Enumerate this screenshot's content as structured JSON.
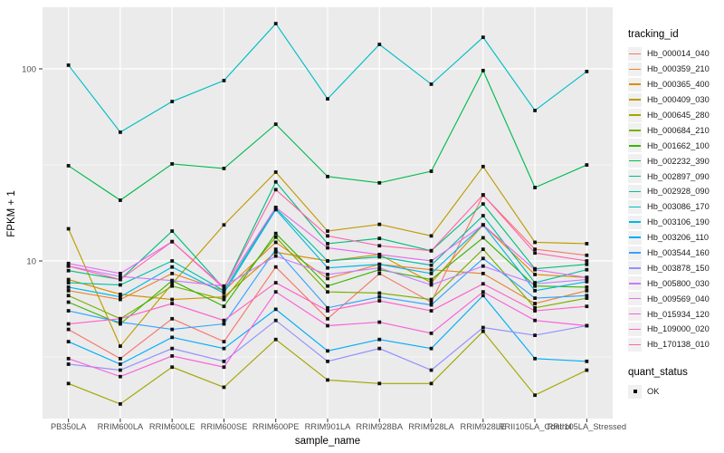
{
  "figure": {
    "legend": {
      "tracking_title": "tracking_id",
      "quant_title": "quant_status",
      "quant_items": [
        {
          "label": "OK",
          "shape": "filled-square",
          "color": "#000000"
        }
      ]
    },
    "panel_background": "#EBEBEB",
    "gridline_color": "#FFFFFF",
    "tick_label_color": "#4D4D4D",
    "point_color": "#111111"
  },
  "chart_data": {
    "type": "line",
    "title": "",
    "xlabel": "sample_name",
    "ylabel": "FPKM + 1",
    "y_scale": "log10",
    "ylim": [
      1.5,
      209
    ],
    "grid": "on",
    "legend_position": "right",
    "point_shape": "filled-square-black",
    "y_ticks": [
      {
        "label": "100",
        "value": 100
      },
      {
        "label": "10",
        "value": 10
      }
    ],
    "y_minor_gridlines": [
      3.1623,
      31.623
    ],
    "categories": [
      "PB350LA",
      "RRIM600LA",
      "RRIM600LE",
      "RRIM600SE",
      "RRIM600PE",
      "RRIM901LA",
      "RRIM928BA",
      "RRIM928LA",
      "RRIM928LE",
      "RRII105LA_Control",
      "RRII105LA_Stressed"
    ],
    "series": [
      {
        "name": "Hb_000014_040",
        "color": "#F8766D",
        "values": [
          4.4,
          3.1,
          5.0,
          3.8,
          9.3,
          5.0,
          8.6,
          6.1,
          22.0,
          11.5,
          10.7
        ]
      },
      {
        "name": "Hb_000359_210",
        "color": "#EA8331",
        "values": [
          7.0,
          6.3,
          8.6,
          7.0,
          12.5,
          8.1,
          9.6,
          9.0,
          8.6,
          6.0,
          7.0
        ]
      },
      {
        "name": "Hb_000365_400",
        "color": "#D89000",
        "values": [
          8.0,
          6.7,
          6.3,
          6.5,
          11.1,
          10.0,
          10.8,
          7.7,
          15.4,
          8.5,
          8.2
        ]
      },
      {
        "name": "Hb_000409_030",
        "color": "#C09B00",
        "values": [
          14.7,
          3.6,
          7.6,
          15.4,
          29.0,
          14.3,
          15.5,
          13.5,
          31.0,
          12.5,
          12.3
        ]
      },
      {
        "name": "Hb_000645_280",
        "color": "#A3A500",
        "values": [
          2.3,
          1.8,
          2.8,
          2.2,
          3.9,
          2.4,
          2.3,
          2.3,
          4.3,
          2.0,
          2.7
        ]
      },
      {
        "name": "Hb_000684_210",
        "color": "#7CAE00",
        "values": [
          6.6,
          5.0,
          7.4,
          6.3,
          13.3,
          6.9,
          6.8,
          6.3,
          11.5,
          5.7,
          6.4
        ]
      },
      {
        "name": "Hb_001662_100",
        "color": "#39B600",
        "values": [
          6.1,
          4.7,
          7.9,
          5.8,
          13.9,
          7.4,
          9.0,
          8.0,
          13.2,
          7.4,
          7.3
        ]
      },
      {
        "name": "Hb_002232_390",
        "color": "#00BB4E",
        "values": [
          31.3,
          20.7,
          32.0,
          30.3,
          51.5,
          27.5,
          25.5,
          29.3,
          98.0,
          24.1,
          31.6
        ]
      },
      {
        "name": "Hb_002897_090",
        "color": "#00BF7D",
        "values": [
          8.9,
          8.0,
          14.3,
          7.2,
          25.8,
          12.3,
          13.1,
          11.3,
          19.8,
          9.1,
          9.6
        ]
      },
      {
        "name": "Hb_002928_090",
        "color": "#00C1A3",
        "values": [
          7.7,
          7.5,
          10.0,
          7.0,
          18.8,
          10.0,
          10.5,
          9.5,
          17.2,
          7.7,
          9.0
        ]
      },
      {
        "name": "Hb_003086_170",
        "color": "#00BFC4",
        "values": [
          104.5,
          46.8,
          67.6,
          86.9,
          172.0,
          69.8,
          134.0,
          83.2,
          146.0,
          60.7,
          96.9
        ]
      },
      {
        "name": "Hb_003106_190",
        "color": "#00B8E7",
        "values": [
          7.3,
          6.5,
          9.3,
          6.8,
          18.5,
          9.2,
          9.6,
          8.6,
          15.4,
          7.0,
          7.8
        ]
      },
      {
        "name": "Hb_003206_110",
        "color": "#00ACFC",
        "values": [
          3.8,
          2.9,
          4.0,
          3.5,
          5.6,
          3.4,
          3.9,
          3.5,
          6.6,
          3.1,
          3.0
        ]
      },
      {
        "name": "Hb_003544_160",
        "color": "#35A2FF",
        "values": [
          5.5,
          4.8,
          4.4,
          4.7,
          11.5,
          5.7,
          6.5,
          5.9,
          10.3,
          6.4,
          6.6
        ]
      },
      {
        "name": "Hb_003878_150",
        "color": "#9590FF",
        "values": [
          2.9,
          2.7,
          3.5,
          3.0,
          4.9,
          3.0,
          3.5,
          2.7,
          4.5,
          4.1,
          4.6
        ]
      },
      {
        "name": "Hb_005800_030",
        "color": "#C77CFF",
        "values": [
          9.4,
          8.3,
          7.9,
          7.4,
          10.6,
          8.5,
          9.2,
          7.5,
          9.4,
          7.6,
          8.0
        ]
      },
      {
        "name": "Hb_009569_040",
        "color": "#E76BF3",
        "values": [
          9.7,
          8.6,
          12.6,
          7.3,
          19.0,
          11.7,
          10.8,
          10.0,
          15.4,
          9.0,
          8.2
        ]
      },
      {
        "name": "Hb_015934_120",
        "color": "#FA62DB",
        "values": [
          3.1,
          2.5,
          3.2,
          2.8,
          6.9,
          4.6,
          4.8,
          4.2,
          6.9,
          4.9,
          4.6
        ]
      },
      {
        "name": "Hb_109000_020",
        "color": "#FF61C9",
        "values": [
          4.7,
          5.0,
          6.0,
          4.9,
          7.7,
          5.5,
          6.2,
          5.5,
          7.6,
          5.5,
          5.8
        ]
      },
      {
        "name": "Hb_170138_010",
        "color": "#FF65AE",
        "values": [
          9.4,
          8.0,
          12.6,
          7.2,
          23.5,
          13.5,
          12.0,
          11.3,
          22.1,
          11.0,
          10.0
        ]
      }
    ]
  }
}
